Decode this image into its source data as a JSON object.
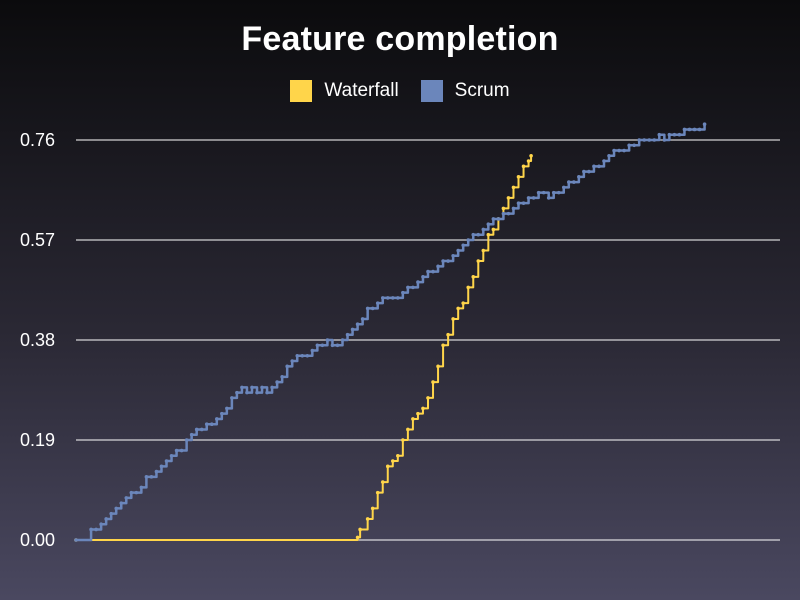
{
  "chart_data": {
    "type": "line",
    "title": "Feature completion",
    "xlabel": "",
    "ylabel": "",
    "ylim": [
      0,
      0.76
    ],
    "yticks": [
      "0.00",
      "0.19",
      "0.38",
      "0.57",
      "0.76"
    ],
    "xlim": [
      0,
      140
    ],
    "grid": "horizontal",
    "legend_position": "top-center",
    "series": [
      {
        "name": "Waterfall",
        "color": "#ffd54a",
        "points": [
          [
            0,
            0.0
          ],
          [
            40,
            0.0
          ],
          [
            55,
            0.0
          ],
          [
            56,
            0.005
          ],
          [
            56.5,
            0.02
          ],
          [
            58,
            0.04
          ],
          [
            59,
            0.06
          ],
          [
            60,
            0.09
          ],
          [
            61,
            0.11
          ],
          [
            62,
            0.14
          ],
          [
            63,
            0.15
          ],
          [
            64,
            0.16
          ],
          [
            65,
            0.19
          ],
          [
            66,
            0.21
          ],
          [
            67,
            0.23
          ],
          [
            68,
            0.24
          ],
          [
            69,
            0.25
          ],
          [
            70,
            0.27
          ],
          [
            71,
            0.3
          ],
          [
            72,
            0.33
          ],
          [
            73,
            0.37
          ],
          [
            74,
            0.39
          ],
          [
            75,
            0.42
          ],
          [
            76,
            0.44
          ],
          [
            77,
            0.45
          ],
          [
            78,
            0.48
          ],
          [
            79,
            0.5
          ],
          [
            80,
            0.53
          ],
          [
            81,
            0.55
          ],
          [
            82,
            0.58
          ],
          [
            83,
            0.59
          ],
          [
            84,
            0.61
          ],
          [
            85,
            0.63
          ],
          [
            86,
            0.65
          ],
          [
            87,
            0.67
          ],
          [
            88,
            0.69
          ],
          [
            89,
            0.71
          ],
          [
            90,
            0.72
          ],
          [
            90.5,
            0.73
          ]
        ]
      },
      {
        "name": "Scrum",
        "color": "#6b86bb",
        "points": [
          [
            0,
            0.0
          ],
          [
            2,
            0.0
          ],
          [
            3,
            0.02
          ],
          [
            4,
            0.02
          ],
          [
            5,
            0.03
          ],
          [
            6,
            0.04
          ],
          [
            7,
            0.05
          ],
          [
            8,
            0.06
          ],
          [
            9,
            0.07
          ],
          [
            10,
            0.08
          ],
          [
            11,
            0.09
          ],
          [
            12,
            0.09
          ],
          [
            13,
            0.1
          ],
          [
            14,
            0.12
          ],
          [
            15,
            0.12
          ],
          [
            16,
            0.13
          ],
          [
            17,
            0.14
          ],
          [
            18,
            0.15
          ],
          [
            19,
            0.16
          ],
          [
            20,
            0.17
          ],
          [
            21,
            0.17
          ],
          [
            22,
            0.19
          ],
          [
            23,
            0.2
          ],
          [
            24,
            0.21
          ],
          [
            25,
            0.21
          ],
          [
            26,
            0.22
          ],
          [
            27,
            0.22
          ],
          [
            28,
            0.23
          ],
          [
            29,
            0.24
          ],
          [
            30,
            0.25
          ],
          [
            31,
            0.27
          ],
          [
            32,
            0.28
          ],
          [
            33,
            0.29
          ],
          [
            34,
            0.28
          ],
          [
            35,
            0.29
          ],
          [
            36,
            0.28
          ],
          [
            37,
            0.29
          ],
          [
            38,
            0.28
          ],
          [
            39,
            0.29
          ],
          [
            40,
            0.3
          ],
          [
            41,
            0.31
          ],
          [
            42,
            0.33
          ],
          [
            43,
            0.34
          ],
          [
            44,
            0.35
          ],
          [
            45,
            0.35
          ],
          [
            46,
            0.35
          ],
          [
            47,
            0.36
          ],
          [
            48,
            0.37
          ],
          [
            49,
            0.37
          ],
          [
            50,
            0.38
          ],
          [
            51,
            0.37
          ],
          [
            52,
            0.37
          ],
          [
            53,
            0.38
          ],
          [
            54,
            0.39
          ],
          [
            55,
            0.4
          ],
          [
            56,
            0.41
          ],
          [
            57,
            0.42
          ],
          [
            58,
            0.44
          ],
          [
            59,
            0.44
          ],
          [
            60,
            0.45
          ],
          [
            61,
            0.46
          ],
          [
            62,
            0.46
          ],
          [
            63,
            0.46
          ],
          [
            64,
            0.46
          ],
          [
            65,
            0.47
          ],
          [
            66,
            0.48
          ],
          [
            67,
            0.48
          ],
          [
            68,
            0.49
          ],
          [
            69,
            0.5
          ],
          [
            70,
            0.51
          ],
          [
            71,
            0.51
          ],
          [
            72,
            0.52
          ],
          [
            73,
            0.53
          ],
          [
            74,
            0.53
          ],
          [
            75,
            0.54
          ],
          [
            76,
            0.55
          ],
          [
            77,
            0.56
          ],
          [
            78,
            0.57
          ],
          [
            79,
            0.58
          ],
          [
            80,
            0.58
          ],
          [
            81,
            0.59
          ],
          [
            82,
            0.6
          ],
          [
            83,
            0.61
          ],
          [
            84,
            0.61
          ],
          [
            85,
            0.62
          ],
          [
            86,
            0.62
          ],
          [
            87,
            0.63
          ],
          [
            88,
            0.64
          ],
          [
            89,
            0.64
          ],
          [
            90,
            0.65
          ],
          [
            91,
            0.65
          ],
          [
            92,
            0.66
          ],
          [
            93,
            0.66
          ],
          [
            94,
            0.65
          ],
          [
            95,
            0.66
          ],
          [
            96,
            0.66
          ],
          [
            97,
            0.67
          ],
          [
            98,
            0.68
          ],
          [
            99,
            0.68
          ],
          [
            100,
            0.69
          ],
          [
            101,
            0.7
          ],
          [
            102,
            0.7
          ],
          [
            103,
            0.71
          ],
          [
            104,
            0.71
          ],
          [
            105,
            0.72
          ],
          [
            106,
            0.73
          ],
          [
            107,
            0.74
          ],
          [
            108,
            0.74
          ],
          [
            109,
            0.74
          ],
          [
            110,
            0.75
          ],
          [
            111,
            0.75
          ],
          [
            112,
            0.76
          ],
          [
            113,
            0.76
          ],
          [
            114,
            0.76
          ],
          [
            115,
            0.76
          ],
          [
            116,
            0.77
          ],
          [
            117,
            0.76
          ],
          [
            118,
            0.77
          ],
          [
            119,
            0.77
          ],
          [
            120,
            0.77
          ],
          [
            121,
            0.78
          ],
          [
            122,
            0.78
          ],
          [
            123,
            0.78
          ],
          [
            124,
            0.78
          ],
          [
            125,
            0.79
          ]
        ]
      }
    ]
  }
}
